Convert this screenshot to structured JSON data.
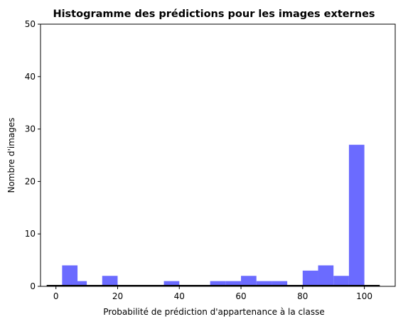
{
  "chart_data": {
    "type": "bar",
    "title": "Histogramme des prédictions pour les images externes",
    "xlabel": "Probabilité de prédiction d'appartenance à la classe",
    "ylabel": "Nombre d'images",
    "xlim": [
      -5,
      110
    ],
    "ylim": [
      0,
      50
    ],
    "xticks": [
      0,
      20,
      40,
      60,
      80,
      100
    ],
    "yticks": [
      0,
      10,
      20,
      30,
      40,
      50
    ],
    "bin_width": 5,
    "bins": [
      {
        "start": 0,
        "count": 0
      },
      {
        "start": 5,
        "count": 1
      },
      {
        "start": 10,
        "count": 0
      },
      {
        "start": 15,
        "count": 2
      },
      {
        "start": 20,
        "count": 0
      },
      {
        "start": 25,
        "count": 0
      },
      {
        "start": 30,
        "count": 0
      },
      {
        "start": 35,
        "count": 1
      },
      {
        "start": 40,
        "count": 0
      },
      {
        "start": 45,
        "count": 0
      },
      {
        "start": 50,
        "count": 1
      },
      {
        "start": 55,
        "count": 1
      },
      {
        "start": 60,
        "count": 2
      },
      {
        "start": 65,
        "count": 1
      },
      {
        "start": 70,
        "count": 1
      },
      {
        "start": 75,
        "count": 0
      },
      {
        "start": 80,
        "count": 3
      },
      {
        "start": 85,
        "count": 4
      },
      {
        "start": 90,
        "count": 2
      },
      {
        "start": 95,
        "count": 27
      }
    ],
    "extra_bar": {
      "start": 2,
      "end": 7,
      "count": 4
    },
    "baseline_range": [
      -3,
      105
    ],
    "bar_color": "#6b6bff",
    "baseline_color": "#000000",
    "grid": false,
    "legend": "none"
  }
}
